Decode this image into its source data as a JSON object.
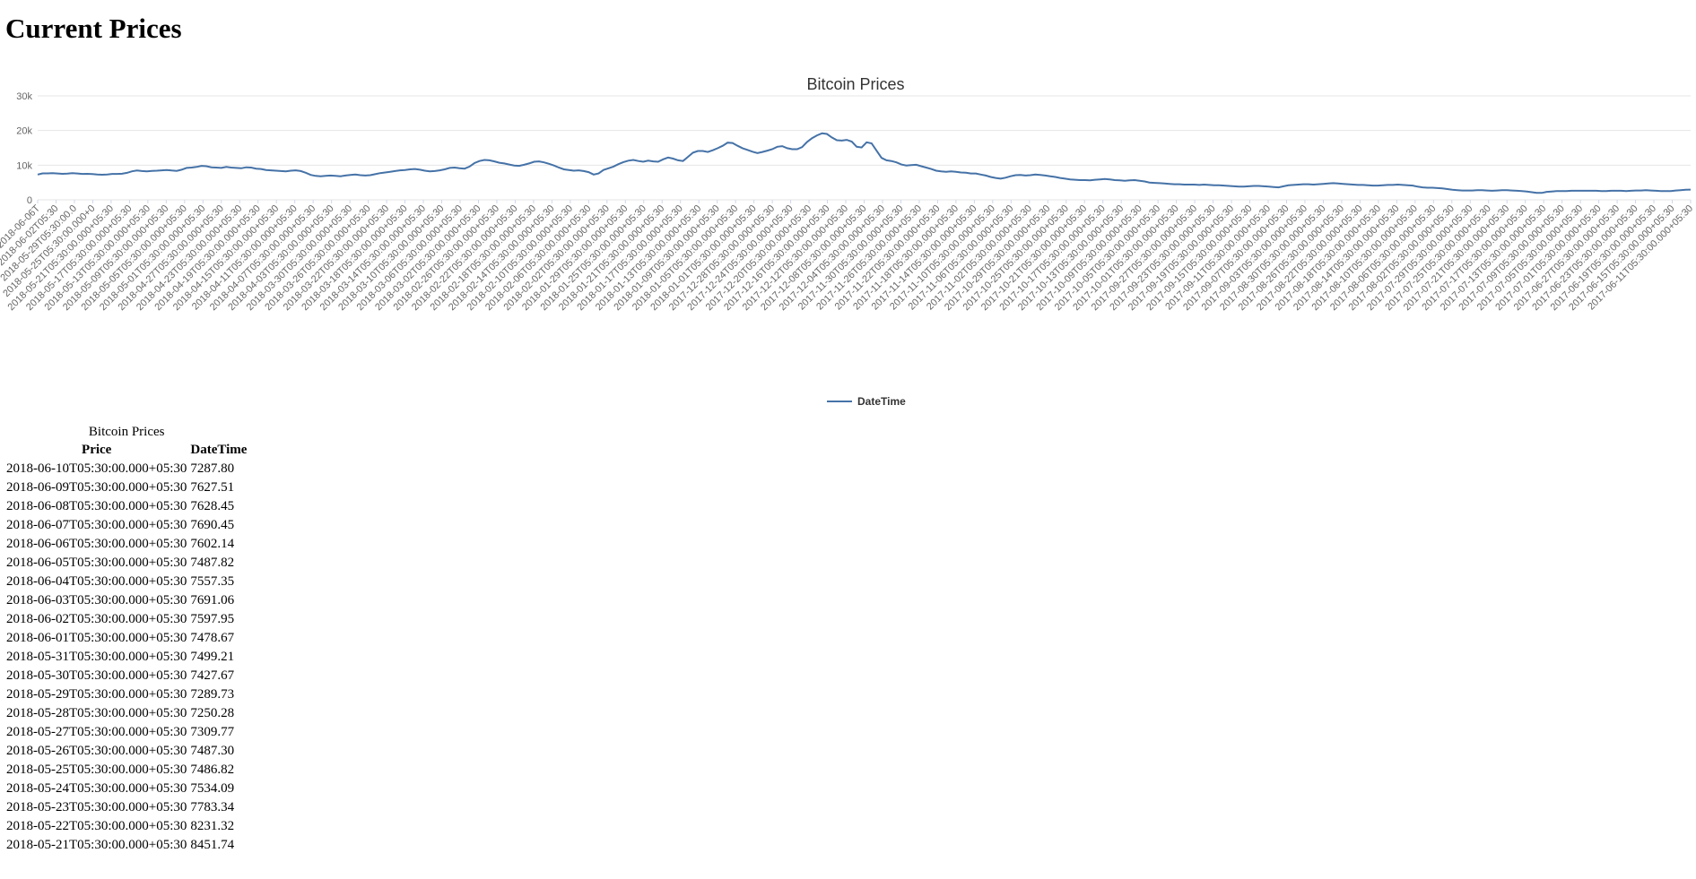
{
  "page": {
    "title": "Current Prices"
  },
  "chart_data": {
    "type": "line",
    "title": "Bitcoin Prices",
    "ylim": [
      0,
      30000
    ],
    "yticks": [
      0,
      10000,
      20000,
      30000
    ],
    "ytick_labels": [
      "0",
      "10k",
      "20k",
      "30k"
    ],
    "grid": true,
    "legend_position": "bottom",
    "line_color": "#4572A7",
    "series": [
      {
        "name": "DateTime",
        "values": [
          7288,
          7628,
          7629,
          7690,
          7602,
          7488,
          7558,
          7691,
          7598,
          7479,
          7499,
          7428,
          7290,
          7250,
          7310,
          7487,
          7487,
          7534,
          7783,
          8231,
          8452,
          8300,
          8200,
          8350,
          8400,
          8500,
          8600,
          8450,
          8350,
          8700,
          9200,
          9300,
          9500,
          9800,
          9700,
          9400,
          9300,
          9200,
          9500,
          9300,
          9200,
          9100,
          9400,
          9300,
          9000,
          8900,
          8600,
          8500,
          8400,
          8300,
          8200,
          8400,
          8500,
          8300,
          7800,
          7200,
          6900,
          6800,
          6900,
          7000,
          6900,
          6800,
          7000,
          7200,
          7300,
          7100,
          7000,
          7100,
          7400,
          7700,
          7900,
          8100,
          8300,
          8500,
          8600,
          8800,
          8900,
          8700,
          8400,
          8200,
          8300,
          8500,
          8800,
          9200,
          9300,
          9100,
          9000,
          9600,
          10600,
          11200,
          11500,
          11400,
          11100,
          10700,
          10500,
          10200,
          9900,
          9800,
          10100,
          10500,
          11000,
          11100,
          10800,
          10400,
          9900,
          9300,
          8800,
          8600,
          8400,
          8500,
          8300,
          8000,
          7300,
          7600,
          8600,
          9100,
          9600,
          10300,
          10900,
          11300,
          11500,
          11200,
          11000,
          11300,
          11100,
          11000,
          11700,
          12200,
          11900,
          11400,
          11200,
          12400,
          13600,
          14100,
          14100,
          13800,
          14300,
          14900,
          15600,
          16500,
          16400,
          15600,
          14900,
          14400,
          13900,
          13500,
          13800,
          14200,
          14600,
          15300,
          15500,
          14900,
          14600,
          14600,
          15200,
          16700,
          17800,
          18600,
          19200,
          19000,
          18000,
          17200,
          17100,
          17300,
          16800,
          15300,
          15100,
          16600,
          16300,
          14200,
          12100,
          11400,
          11200,
          10800,
          10200,
          9900,
          10000,
          10100,
          9700,
          9300,
          8900,
          8400,
          8200,
          8100,
          8200,
          8100,
          7900,
          7800,
          7600,
          7600,
          7300,
          7000,
          6600,
          6300,
          6100,
          6400,
          6800,
          7100,
          7200,
          7000,
          7100,
          7300,
          7200,
          7000,
          6800,
          6600,
          6300,
          6100,
          5900,
          5800,
          5700,
          5700,
          5600,
          5800,
          5900,
          6000,
          5900,
          5700,
          5600,
          5500,
          5600,
          5700,
          5500,
          5300,
          5000,
          4900,
          4800,
          4700,
          4600,
          4500,
          4500,
          4400,
          4400,
          4400,
          4300,
          4400,
          4300,
          4200,
          4200,
          4100,
          4000,
          3900,
          3800,
          3800,
          3900,
          4000,
          4000,
          3900,
          3800,
          3700,
          3600,
          3900,
          4200,
          4300,
          4400,
          4500,
          4500,
          4400,
          4500,
          4600,
          4700,
          4800,
          4700,
          4600,
          4500,
          4400,
          4300,
          4300,
          4200,
          4100,
          4100,
          4200,
          4300,
          4300,
          4400,
          4300,
          4200,
          4100,
          3800,
          3600,
          3500,
          3500,
          3400,
          3300,
          3100,
          2900,
          2800,
          2700,
          2700,
          2700,
          2800,
          2800,
          2700,
          2600,
          2700,
          2800,
          2800,
          2700,
          2600,
          2500,
          2400,
          2200,
          2000,
          2000,
          2300,
          2400,
          2500,
          2500,
          2500,
          2600,
          2600,
          2600,
          2600,
          2600,
          2600,
          2500,
          2500,
          2600,
          2600,
          2600,
          2500,
          2600,
          2700,
          2700,
          2800,
          2700,
          2600,
          2500,
          2500,
          2500,
          2700,
          2800,
          2900,
          2950
        ]
      }
    ],
    "x_labels": [
      "2018-06-06T",
      "2018-06-02T05:30",
      "2018-05-29T05:30:00.0",
      "2018-05-25T05:30:00.000+0",
      "2018-05-21T05:30:00.000+05:30",
      "2018-05-17T05:30:00.000+05:30",
      "2018-05-13T05:30:00.000+05:30",
      "2018-05-09T05:30:00.000+05:30",
      "2018-05-05T05:30:00.000+05:30",
      "2018-05-01T05:30:00.000+05:30",
      "2018-04-27T05:30:00.000+05:30",
      "2018-04-23T05:30:00.000+05:30",
      "2018-04-19T05:30:00.000+05:30",
      "2018-04-15T05:30:00.000+05:30",
      "2018-04-11T05:30:00.000+05:30",
      "2018-04-07T05:30:00.000+05:30",
      "2018-04-03T05:30:00.000+05:30",
      "2018-03-30T05:30:00.000+05:30",
      "2018-03-26T05:30:00.000+05:30",
      "2018-03-22T05:30:00.000+05:30",
      "2018-03-18T05:30:00.000+05:30",
      "2018-03-14T05:30:00.000+05:30",
      "2018-03-10T05:30:00.000+05:30",
      "2018-03-06T05:30:00.000+05:30",
      "2018-03-02T05:30:00.000+05:30",
      "2018-02-26T05:30:00.000+05:30",
      "2018-02-22T05:30:00.000+05:30",
      "2018-02-18T05:30:00.000+05:30",
      "2018-02-14T05:30:00.000+05:30",
      "2018-02-10T05:30:00.000+05:30",
      "2018-02-06T05:30:00.000+05:30",
      "2018-02-02T05:30:00.000+05:30",
      "2018-01-29T05:30:00.000+05:30",
      "2018-01-25T05:30:00.000+05:30",
      "2018-01-21T05:30:00.000+05:30",
      "2018-01-17T05:30:00.000+05:30",
      "2018-01-13T05:30:00.000+05:30",
      "2018-01-09T05:30:00.000+05:30",
      "2018-01-05T05:30:00.000+05:30",
      "2018-01-01T05:30:00.000+05:30",
      "2017-12-28T05:30:00.000+05:30",
      "2017-12-24T05:30:00.000+05:30",
      "2017-12-20T05:30:00.000+05:30",
      "2017-12-16T05:30:00.000+05:30",
      "2017-12-12T05:30:00.000+05:30",
      "2017-12-08T05:30:00.000+05:30",
      "2017-12-04T05:30:00.000+05:30",
      "2017-11-30T05:30:00.000+05:30",
      "2017-11-26T05:30:00.000+05:30",
      "2017-11-22T05:30:00.000+05:30",
      "2017-11-18T05:30:00.000+05:30",
      "2017-11-14T05:30:00.000+05:30",
      "2017-11-10T05:30:00.000+05:30",
      "2017-11-06T05:30:00.000+05:30",
      "2017-11-02T05:30:00.000+05:30",
      "2017-10-29T05:30:00.000+05:30",
      "2017-10-25T05:30:00.000+05:30",
      "2017-10-21T05:30:00.000+05:30",
      "2017-10-17T05:30:00.000+05:30",
      "2017-10-13T05:30:00.000+05:30",
      "2017-10-09T05:30:00.000+05:30",
      "2017-10-05T05:30:00.000+05:30",
      "2017-10-01T05:30:00.000+05:30",
      "2017-09-27T05:30:00.000+05:30",
      "2017-09-23T05:30:00.000+05:30",
      "2017-09-19T05:30:00.000+05:30",
      "2017-09-15T05:30:00.000+05:30",
      "2017-09-11T05:30:00.000+05:30",
      "2017-09-07T05:30:00.000+05:30",
      "2017-09-03T05:30:00.000+05:30",
      "2017-08-30T05:30:00.000+05:30",
      "2017-08-26T05:30:00.000+05:30",
      "2017-08-22T05:30:00.000+05:30",
      "2017-08-18T05:30:00.000+05:30",
      "2017-08-14T05:30:00.000+05:30",
      "2017-08-10T05:30:00.000+05:30",
      "2017-08-06T05:30:00.000+05:30",
      "2017-08-02T05:30:00.000+05:30",
      "2017-07-29T05:30:00.000+05:30",
      "2017-07-25T05:30:00.000+05:30",
      "2017-07-21T05:30:00.000+05:30",
      "2017-07-17T05:30:00.000+05:30",
      "2017-07-13T05:30:00.000+05:30",
      "2017-07-09T05:30:00.000+05:30",
      "2017-07-05T05:30:00.000+05:30",
      "2017-07-01T05:30:00.000+05:30",
      "2017-06-27T05:30:00.000+05:30",
      "2017-06-23T05:30:00.000+05:30",
      "2017-06-19T05:30:00.000+05:30",
      "2017-06-15T05:30:00.000+05:30",
      "2017-06-11T05:30:00.000+05:30"
    ]
  },
  "table": {
    "caption": "Bitcoin Prices",
    "headers": [
      "Price",
      "DateTime"
    ],
    "rows": [
      [
        "2018-06-10T05:30:00.000+05:30",
        "7287.80"
      ],
      [
        "2018-06-09T05:30:00.000+05:30",
        "7627.51"
      ],
      [
        "2018-06-08T05:30:00.000+05:30",
        "7628.45"
      ],
      [
        "2018-06-07T05:30:00.000+05:30",
        "7690.45"
      ],
      [
        "2018-06-06T05:30:00.000+05:30",
        "7602.14"
      ],
      [
        "2018-06-05T05:30:00.000+05:30",
        "7487.82"
      ],
      [
        "2018-06-04T05:30:00.000+05:30",
        "7557.35"
      ],
      [
        "2018-06-03T05:30:00.000+05:30",
        "7691.06"
      ],
      [
        "2018-06-02T05:30:00.000+05:30",
        "7597.95"
      ],
      [
        "2018-06-01T05:30:00.000+05:30",
        "7478.67"
      ],
      [
        "2018-05-31T05:30:00.000+05:30",
        "7499.21"
      ],
      [
        "2018-05-30T05:30:00.000+05:30",
        "7427.67"
      ],
      [
        "2018-05-29T05:30:00.000+05:30",
        "7289.73"
      ],
      [
        "2018-05-28T05:30:00.000+05:30",
        "7250.28"
      ],
      [
        "2018-05-27T05:30:00.000+05:30",
        "7309.77"
      ],
      [
        "2018-05-26T05:30:00.000+05:30",
        "7487.30"
      ],
      [
        "2018-05-25T05:30:00.000+05:30",
        "7486.82"
      ],
      [
        "2018-05-24T05:30:00.000+05:30",
        "7534.09"
      ],
      [
        "2018-05-23T05:30:00.000+05:30",
        "7783.34"
      ],
      [
        "2018-05-22T05:30:00.000+05:30",
        "8231.32"
      ],
      [
        "2018-05-21T05:30:00.000+05:30",
        "8451.74"
      ]
    ]
  }
}
